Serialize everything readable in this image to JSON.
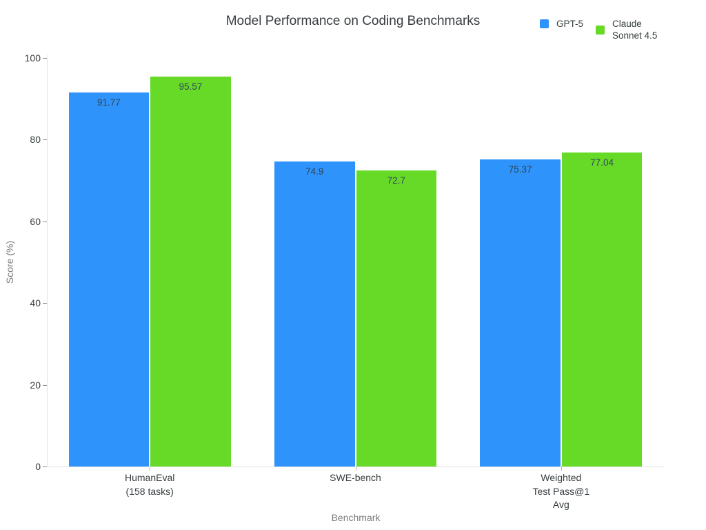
{
  "chart_data": {
    "type": "bar",
    "title": "Model Performance on Coding Benchmarks",
    "xlabel": "Benchmark",
    "ylabel": "Score (%)",
    "ylim": [
      0,
      100
    ],
    "yticks": [
      0,
      20,
      40,
      60,
      80,
      100
    ],
    "grid": false,
    "legend_position": "top-right",
    "categories": [
      "HumanEval\n(158 tasks)",
      "SWE-bench",
      "Weighted\nTest Pass@1\nAvg"
    ],
    "series": [
      {
        "name": "GPT-5",
        "legend_label": "GPT-5",
        "color": "#2E93FA",
        "values": [
          91.77,
          74.9,
          75.37
        ],
        "data_labels": [
          "91.77",
          "74.9",
          "75.37"
        ]
      },
      {
        "name": "Claude Sonnet 4.5",
        "legend_label": "Claude\nSonnet 4.5",
        "color": "#66DA26",
        "values": [
          95.57,
          72.7,
          77.04
        ],
        "data_labels": [
          "95.57",
          "72.7",
          "77.04"
        ]
      }
    ],
    "colors": {
      "title": "#373d3f",
      "axis_line": "#e3e3e3",
      "tick_label": "#373d3f",
      "axis_title": "#7b7b7b",
      "data_label": "#304758",
      "legend_text": "#373d3f"
    }
  }
}
